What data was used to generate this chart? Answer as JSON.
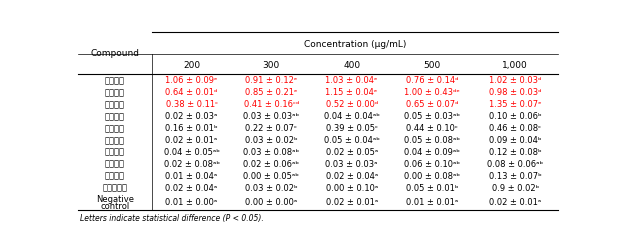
{
  "col_header": [
    "Compound",
    "200",
    "300",
    "400",
    "500",
    "1,000"
  ],
  "conc_header": "Concentration (μg/mL)",
  "rows": [
    {
      "compound": "자가버섯",
      "values": [
        "1.06 ± 0.09ᵉ",
        "0.91 ± 0.12ᵉ",
        "1.03 ± 0.04ᵉ",
        "0.76 ± 0.14ᵈ",
        "1.02 ± 0.03ᵈ"
      ],
      "color": "red"
    },
    {
      "compound": "상황버섯",
      "values": [
        "0.64 ± 0.01ᵈ",
        "0.85 ± 0.21ᵉ",
        "1.15 ± 0.04ᵉ",
        "1.00 ± 0.43ᵈᵉ",
        "0.98 ± 0.03ᵈ"
      ],
      "color": "red"
    },
    {
      "compound": "운지버섯",
      "values": [
        "0.38 ± 0.11ᶜ",
        "0.41 ± 0.16ᶜᵈ",
        "0.52 ± 0.00ᵈ",
        "0.65 ± 0.07ᵈ",
        "1.35 ± 0.07ᵉ"
      ],
      "color": "red"
    },
    {
      "compound": "동충하초",
      "values": [
        "0.02 ± 0.03ᵃ",
        "0.03 ± 0.03ᵃᵇ",
        "0.04 ± 0.04ᵃᵇ",
        "0.05 ± 0.03ᵃᵇ",
        "0.10 ± 0.06ᵇ"
      ],
      "color": "black"
    },
    {
      "compound": "영지버섯",
      "values": [
        "0.16 ± 0.01ᵇ",
        "0.22 ± 0.07ᶜ",
        "0.39 ± 0.05ᶜ",
        "0.44 ± 0.10ᶜ",
        "0.46 ± 0.08ᶜ"
      ],
      "color": "black"
    },
    {
      "compound": "잎새버섯",
      "values": [
        "0.02 ± 0.01ᵃ",
        "0.03 ± 0.02ᵇ",
        "0.05 ± 0.04ᵃᵇ",
        "0.05 ± 0.08ᵃᵇ",
        "0.09 ± 0.04ᵇ"
      ],
      "color": "black"
    },
    {
      "compound": "표고버섯",
      "values": [
        "0.04 ± 0.05ᵃᵇ",
        "0.03 ± 0.08ᵃᵇ",
        "0.02 ± 0.05ᵃ",
        "0.04 ± 0.09ᵃᵇ",
        "0.12 ± 0.08ᵇ"
      ],
      "color": "black"
    },
    {
      "compound": "팬이버섯",
      "values": [
        "0.02 ± 0.08ᵃᵇ",
        "0.02 ± 0.06ᵃᵇ",
        "0.03 ± 0.03ᵃ",
        "0.06 ± 0.10ᵃᵇ",
        "0.08 ± 0.06ᵃᵇ"
      ],
      "color": "black"
    },
    {
      "compound": "목이버섯",
      "values": [
        "0.01 ± 0.04ᵃ",
        "0.00 ± 0.05ᵃᵇ",
        "0.02 ± 0.04ᵃ",
        "0.00 ± 0.08ᵃᵇ",
        "0.13 ± 0.07ᵇ"
      ],
      "color": "black"
    },
    {
      "compound": "느타리버섯",
      "values": [
        "0.02 ± 0.04ᵃ",
        "0.03 ± 0.02ᵇ",
        "0.00 ± 0.10ᵃ",
        "0.05 ± 0.01ᵇ",
        "0.9 ± 0.02ᵇ"
      ],
      "color": "black"
    },
    {
      "compound": "Negative\ncontrol",
      "values": [
        "0.01 ± 0.00ᵃ",
        "0.00 ± 0.00ᵃ",
        "0.02 ± 0.01ᵃ",
        "0.01 ± 0.01ᵃ",
        "0.02 ± 0.01ᵃ"
      ],
      "color": "black"
    }
  ],
  "footnote": "Letters indicate statistical difference (P < 0.05).",
  "bg_color": "#ffffff",
  "text_color": "#000000",
  "red_color": "#ff0000",
  "figsize": [
    6.2,
    2.28
  ],
  "dpi": 100
}
